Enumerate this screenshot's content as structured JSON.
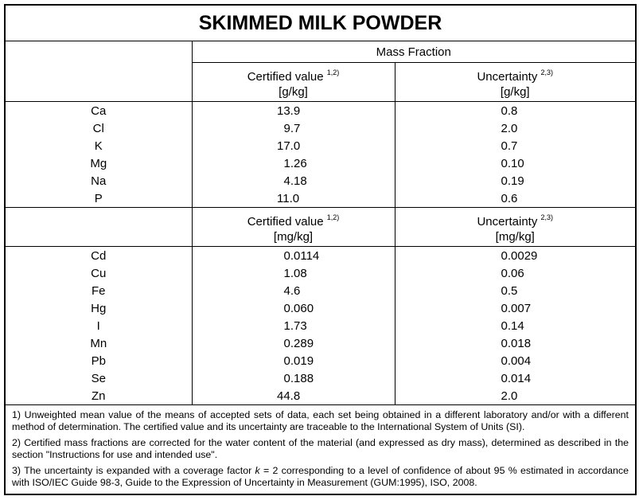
{
  "title": "SKIMMED MILK POWDER",
  "group_header": "Mass Fraction",
  "blocks": [
    {
      "certified_header": "Certified value",
      "certified_note": "1,2)",
      "certified_unit": "[g/kg]",
      "uncertainty_header": "Uncertainty",
      "uncertainty_note": "2,3)",
      "uncertainty_unit": "[g/kg]",
      "rows": [
        [
          "Ca",
          "13.9",
          "0.8"
        ],
        [
          "Cl",
          "9.7",
          "2.0"
        ],
        [
          "K",
          "17.0",
          "0.7"
        ],
        [
          "Mg",
          "1.26",
          "0.10"
        ],
        [
          "Na",
          "4.18",
          "0.19"
        ],
        [
          "P",
          "11.0",
          "0.6"
        ]
      ]
    },
    {
      "certified_header": "Certified value",
      "certified_note": "1,2)",
      "certified_unit": "[mg/kg]",
      "uncertainty_header": "Uncertainty",
      "uncertainty_note": "2,3)",
      "uncertainty_unit": "[mg/kg]",
      "rows": [
        [
          "Cd",
          "0.0114",
          "0.0029"
        ],
        [
          "Cu",
          "1.08",
          "0.06"
        ],
        [
          "Fe",
          "4.6",
          "0.5"
        ],
        [
          "Hg",
          "0.060",
          "0.007"
        ],
        [
          "I",
          "1.73",
          "0.14"
        ],
        [
          "Mn",
          "0.289",
          "0.018"
        ],
        [
          "Pb",
          "0.019",
          "0.004"
        ],
        [
          "Se",
          "0.188",
          "0.014"
        ],
        [
          "Zn",
          "44.8",
          "2.0"
        ]
      ]
    }
  ],
  "footnotes": [
    "1) Unweighted mean value of the means of accepted sets of data, each set being obtained in a different laboratory and/or with a different method of determination. The certified value and its uncertainty are traceable to the International System of Units (SI).",
    "2) Certified mass fractions are corrected for the water content of the material (and expressed as dry mass), determined as described in the section \"Instructions for use and intended use\".",
    {
      "before": "3) The uncertainty is expanded with a coverage factor ",
      "italic": "k",
      "after": " = 2 corresponding to a level of confidence of about 95 % estimated in accordance with ISO/IEC Guide 98-3, Guide to the Expression of Uncertainty in Measurement (GUM:1995), ISO, 2008."
    }
  ]
}
